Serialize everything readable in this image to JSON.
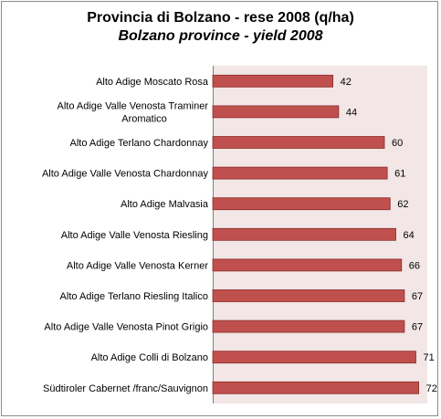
{
  "chart_data": {
    "type": "bar",
    "orientation": "horizontal",
    "title": "Provincia di Bolzano - rese 2008  (q/ha)",
    "subtitle": "Bolzano province - yield 2008",
    "xlabel": "",
    "ylabel": "",
    "xlim": [
      0,
      75
    ],
    "grid": false,
    "legend": "none",
    "colors": {
      "bar_fill": "#c0504d",
      "bar_stroke": "#8b2c2a",
      "plot_background": "#f2e6e6"
    },
    "categories": [
      [
        "Alto Adige Moscato Rosa"
      ],
      [
        "Alto Adige Valle Venosta Traminer",
        "Aromatico"
      ],
      [
        "Alto Adige Terlano Chardonnay"
      ],
      [
        "Alto Adige Valle Venosta Chardonnay"
      ],
      [
        "Alto Adige Malvasia"
      ],
      [
        "Alto Adige Valle Venosta Riesling"
      ],
      [
        "Alto Adige Valle Venosta Kerner"
      ],
      [
        "Alto Adige Terlano Riesling Italico"
      ],
      [
        "Alto Adige Valle Venosta Pinot Grigio"
      ],
      [
        "Alto Adige Colli di Bolzano"
      ],
      [
        "Südtiroler Cabernet /franc/Sauvignon"
      ]
    ],
    "values": [
      42,
      44,
      60,
      61,
      62,
      64,
      66,
      67,
      67,
      71,
      72
    ],
    "value_labels": [
      "42",
      "44",
      "60",
      "61",
      "62",
      "64",
      "66",
      "67",
      "67",
      "71",
      "72"
    ]
  }
}
